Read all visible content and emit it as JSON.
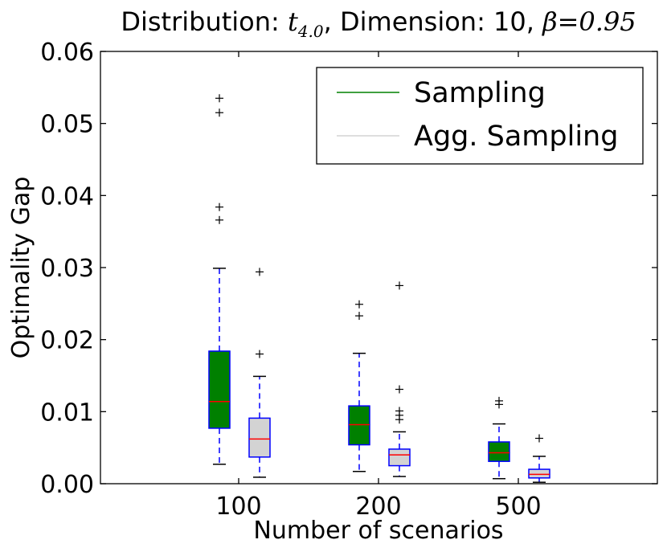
{
  "chart_data": {
    "type": "boxplot",
    "title": {
      "prefix": "Distribution: ",
      "dist_symbol": "t",
      "dist_subscript": "4.0",
      "middle": ", Dimension: 10, ",
      "beta_symbol": "β",
      "beta_eq": "=0.95"
    },
    "xlabel": "Number of scenarios",
    "ylabel": "Optimality Gap",
    "categories": [
      "100",
      "200",
      "500"
    ],
    "ylim": [
      0.0,
      0.06
    ],
    "yticks": [
      0.0,
      0.01,
      0.02,
      0.03,
      0.04,
      0.05,
      0.06
    ],
    "ytick_labels": [
      "0.00",
      "0.01",
      "0.02",
      "0.03",
      "0.04",
      "0.05",
      "0.06"
    ],
    "legend_position": "top-right",
    "series": [
      {
        "name": "Sampling",
        "fill": "#008000",
        "legend_line": "#008000",
        "boxes": [
          {
            "category": "100",
            "whisker_low": 0.0027,
            "q1": 0.0077,
            "median": 0.0114,
            "q3": 0.0184,
            "whisker_high": 0.0299,
            "outliers": [
              0.0366,
              0.0384,
              0.0515,
              0.0535
            ]
          },
          {
            "category": "200",
            "whisker_low": 0.0017,
            "q1": 0.0054,
            "median": 0.0082,
            "q3": 0.0108,
            "whisker_high": 0.0181,
            "outliers": [
              0.0233,
              0.0249
            ]
          },
          {
            "category": "500",
            "whisker_low": 0.0007,
            "q1": 0.0031,
            "median": 0.0043,
            "q3": 0.0058,
            "whisker_high": 0.0083,
            "outliers": [
              0.011,
              0.0115
            ]
          }
        ]
      },
      {
        "name": "Agg. Sampling",
        "fill": "#d3d3d3",
        "legend_line": "#d3d3d3",
        "boxes": [
          {
            "category": "100",
            "whisker_low": 0.0009,
            "q1": 0.0037,
            "median": 0.0062,
            "q3": 0.0091,
            "whisker_high": 0.0149,
            "outliers": [
              0.018,
              0.0294
            ]
          },
          {
            "category": "200",
            "whisker_low": 0.001,
            "q1": 0.0025,
            "median": 0.004,
            "q3": 0.0048,
            "whisker_high": 0.0072,
            "outliers": [
              0.0089,
              0.0095,
              0.0101,
              0.0131,
              0.0275
            ]
          },
          {
            "category": "500",
            "whisker_low": 0.0002,
            "q1": 0.0008,
            "median": 0.0013,
            "q3": 0.002,
            "whisker_high": 0.0038,
            "outliers": [
              0.0063
            ]
          }
        ]
      }
    ],
    "colors": {
      "box_edge": "#0000ff",
      "median": "#ff0000",
      "flier": "#000000"
    }
  }
}
